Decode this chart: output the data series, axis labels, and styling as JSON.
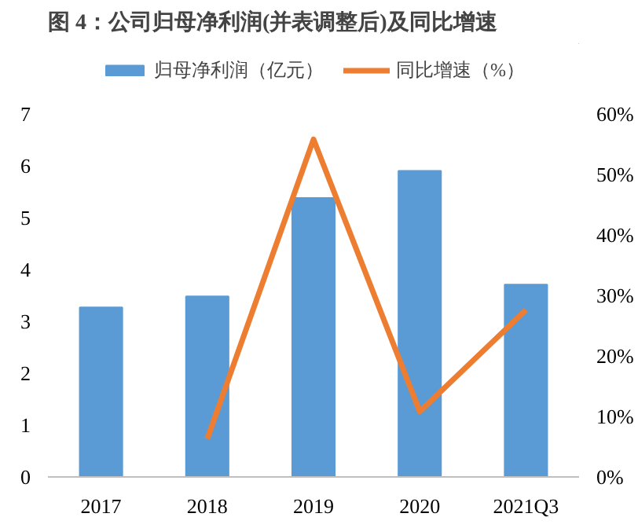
{
  "chart_data": {
    "type": "bar",
    "title": "图 4：公司归母净利润(并表调整后)及同比增速",
    "categories": [
      "2017",
      "2018",
      "2019",
      "2020",
      "2021Q3"
    ],
    "series": [
      {
        "name": "归母净利润（亿元）",
        "color": "#5b9bd5",
        "values": [
          3.27,
          3.48,
          5.38,
          5.9,
          3.71
        ]
      },
      {
        "name": "同比增速（%）",
        "type": "line",
        "axis": "y2",
        "color": "#ed7d31",
        "values": [
          null,
          6.3,
          55.8,
          10.8,
          27.6
        ]
      }
    ],
    "ylim": [
      0,
      7
    ],
    "yticks": [
      0,
      1,
      2,
      3,
      4,
      5,
      6,
      7
    ],
    "y2lim": [
      0,
      60
    ],
    "y2ticks": [
      {
        "value": 0,
        "label": "0%"
      },
      {
        "value": 10,
        "label": "10%"
      },
      {
        "value": 20,
        "label": "20%"
      },
      {
        "value": 30,
        "label": "30%"
      },
      {
        "value": 40,
        "label": "40%"
      },
      {
        "value": 50,
        "label": "50%"
      },
      {
        "value": 60,
        "label": "60%"
      }
    ],
    "grid": false,
    "legend": "top",
    "marker": "none",
    "line_style": "solid"
  }
}
